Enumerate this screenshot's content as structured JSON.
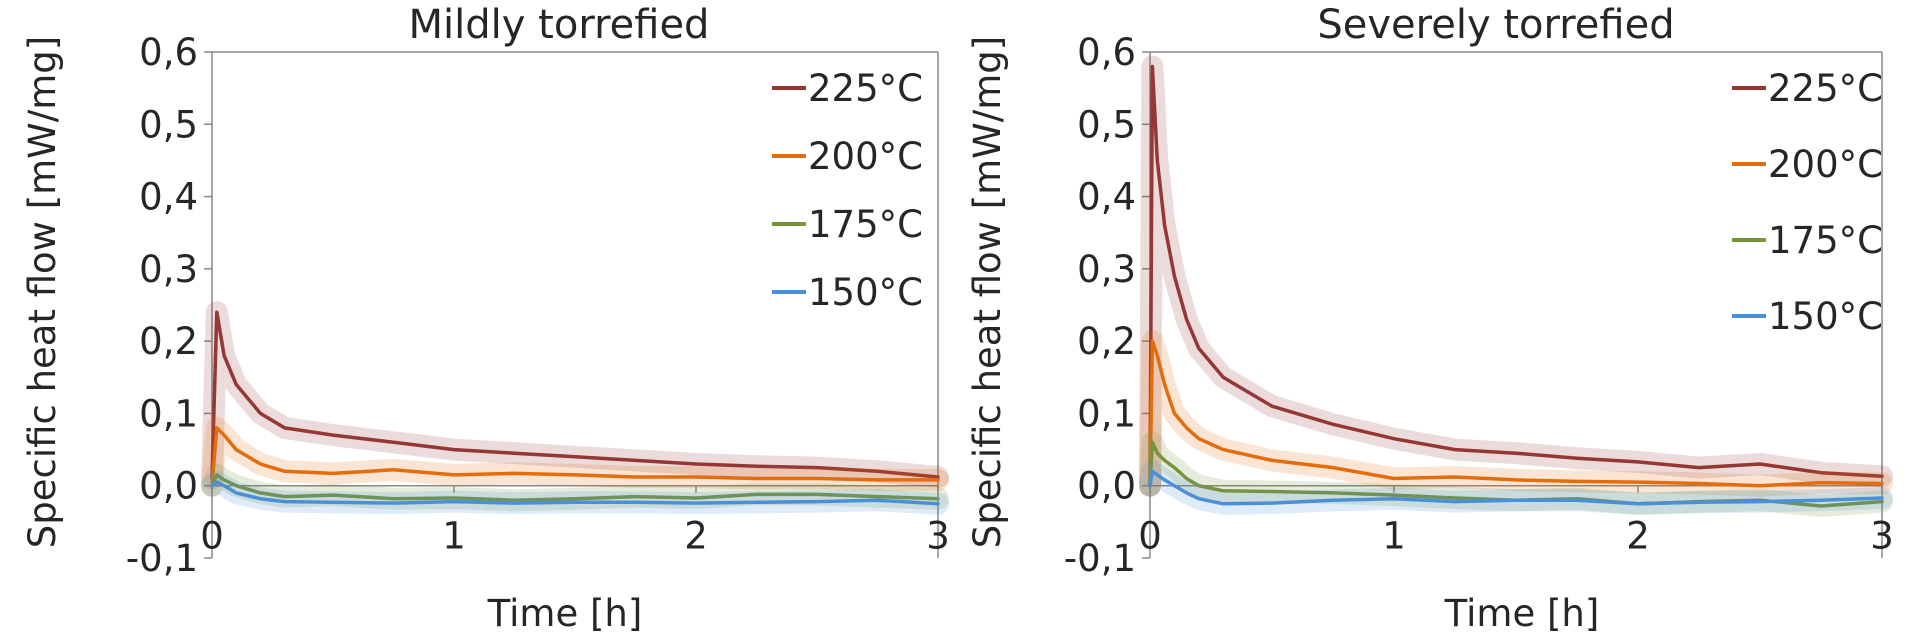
{
  "chart_data": [
    {
      "type": "line",
      "title": "Mildly torrefied",
      "xlabel": "Time [h]",
      "ylabel": "Specific heat flow [mW/mg]",
      "xlim": [
        0,
        3
      ],
      "ylim": [
        -0.1,
        0.6
      ],
      "xticks": [
        "0",
        "1",
        "2",
        "3"
      ],
      "yticks": [
        "-0,1",
        "0,0",
        "0,1",
        "0,2",
        "0,3",
        "0,4",
        "0,5",
        "0,6"
      ],
      "legend": "top-right",
      "series": [
        {
          "name": "225°C",
          "color": "#953735",
          "x": [
            0,
            0.02,
            0.05,
            0.1,
            0.2,
            0.3,
            0.5,
            0.75,
            1.0,
            1.25,
            1.5,
            1.75,
            2.0,
            2.25,
            2.5,
            2.75,
            3.0
          ],
          "y": [
            0.01,
            0.24,
            0.18,
            0.14,
            0.1,
            0.08,
            0.07,
            0.06,
            0.05,
            0.045,
            0.04,
            0.035,
            0.03,
            0.027,
            0.025,
            0.02,
            0.012
          ]
        },
        {
          "name": "200°C",
          "color": "#E46C0A",
          "x": [
            0,
            0.02,
            0.05,
            0.1,
            0.2,
            0.3,
            0.5,
            0.75,
            1.0,
            1.25,
            1.5,
            1.75,
            2.0,
            2.25,
            2.5,
            2.75,
            3.0
          ],
          "y": [
            0.0,
            0.08,
            0.07,
            0.05,
            0.03,
            0.02,
            0.017,
            0.022,
            0.015,
            0.017,
            0.015,
            0.012,
            0.012,
            0.01,
            0.01,
            0.008,
            0.008
          ]
        },
        {
          "name": "175°C",
          "color": "#77933C",
          "x": [
            0,
            0.02,
            0.05,
            0.1,
            0.2,
            0.3,
            0.5,
            0.75,
            1.0,
            1.25,
            1.5,
            1.75,
            2.0,
            2.25,
            2.5,
            2.75,
            3.0
          ],
          "y": [
            0.0,
            0.015,
            0.008,
            0.0,
            -0.01,
            -0.015,
            -0.013,
            -0.018,
            -0.017,
            -0.02,
            -0.018,
            -0.015,
            -0.017,
            -0.012,
            -0.012,
            -0.015,
            -0.018
          ]
        },
        {
          "name": "150°C",
          "color": "#4A90D9",
          "x": [
            0,
            0.02,
            0.05,
            0.1,
            0.2,
            0.3,
            0.5,
            0.75,
            1.0,
            1.25,
            1.5,
            1.75,
            2.0,
            2.25,
            2.5,
            2.75,
            3.0
          ],
          "y": [
            0.0,
            0.005,
            0.0,
            -0.01,
            -0.018,
            -0.022,
            -0.023,
            -0.024,
            -0.022,
            -0.024,
            -0.023,
            -0.023,
            -0.024,
            -0.023,
            -0.022,
            -0.02,
            -0.025
          ]
        }
      ]
    },
    {
      "type": "line",
      "title": "Severely torrefied",
      "xlabel": "Time [h]",
      "ylabel": "Specific heat flow [mW/mg]",
      "xlim": [
        0,
        3
      ],
      "ylim": [
        -0.1,
        0.6
      ],
      "xticks": [
        "0",
        "1",
        "2",
        "3"
      ],
      "yticks": [
        "-0,1",
        "0,0",
        "0,1",
        "0,2",
        "0,3",
        "0,4",
        "0,5",
        "0,6"
      ],
      "legend": "top-right",
      "series": [
        {
          "name": "225°C",
          "color": "#953735",
          "x": [
            0,
            0.01,
            0.03,
            0.06,
            0.1,
            0.15,
            0.2,
            0.3,
            0.5,
            0.75,
            1.0,
            1.25,
            1.5,
            1.75,
            2.0,
            2.25,
            2.5,
            2.75,
            3.0
          ],
          "y": [
            0.0,
            0.58,
            0.45,
            0.36,
            0.29,
            0.23,
            0.19,
            0.15,
            0.11,
            0.085,
            0.065,
            0.05,
            0.045,
            0.038,
            0.033,
            0.025,
            0.03,
            0.018,
            0.013
          ]
        },
        {
          "name": "200°C",
          "color": "#E46C0A",
          "x": [
            0,
            0.01,
            0.03,
            0.06,
            0.1,
            0.15,
            0.2,
            0.3,
            0.5,
            0.75,
            1.0,
            1.25,
            1.5,
            1.75,
            2.0,
            2.25,
            2.5,
            2.75,
            3.0
          ],
          "y": [
            0.0,
            0.2,
            0.18,
            0.14,
            0.1,
            0.08,
            0.065,
            0.05,
            0.035,
            0.025,
            0.01,
            0.012,
            0.008,
            0.006,
            0.005,
            0.003,
            0.0,
            0.004,
            0.003
          ]
        },
        {
          "name": "175°C",
          "color": "#77933C",
          "x": [
            0,
            0.01,
            0.03,
            0.06,
            0.1,
            0.15,
            0.2,
            0.3,
            0.5,
            0.75,
            1.0,
            1.25,
            1.5,
            1.75,
            2.0,
            2.25,
            2.5,
            2.75,
            3.0
          ],
          "y": [
            0.0,
            0.06,
            0.045,
            0.035,
            0.025,
            0.01,
            0.0,
            -0.007,
            -0.008,
            -0.01,
            -0.013,
            -0.017,
            -0.02,
            -0.018,
            -0.025,
            -0.022,
            -0.02,
            -0.028,
            -0.022
          ]
        },
        {
          "name": "150°C",
          "color": "#4A90D9",
          "x": [
            0,
            0.01,
            0.03,
            0.06,
            0.1,
            0.15,
            0.2,
            0.3,
            0.5,
            0.75,
            1.0,
            1.25,
            1.5,
            1.75,
            2.0,
            2.25,
            2.5,
            2.75,
            3.0
          ],
          "y": [
            0.0,
            0.02,
            0.015,
            0.008,
            0.0,
            -0.01,
            -0.018,
            -0.025,
            -0.024,
            -0.02,
            -0.018,
            -0.022,
            -0.02,
            -0.02,
            -0.025,
            -0.023,
            -0.022,
            -0.02,
            -0.017
          ]
        }
      ]
    }
  ]
}
